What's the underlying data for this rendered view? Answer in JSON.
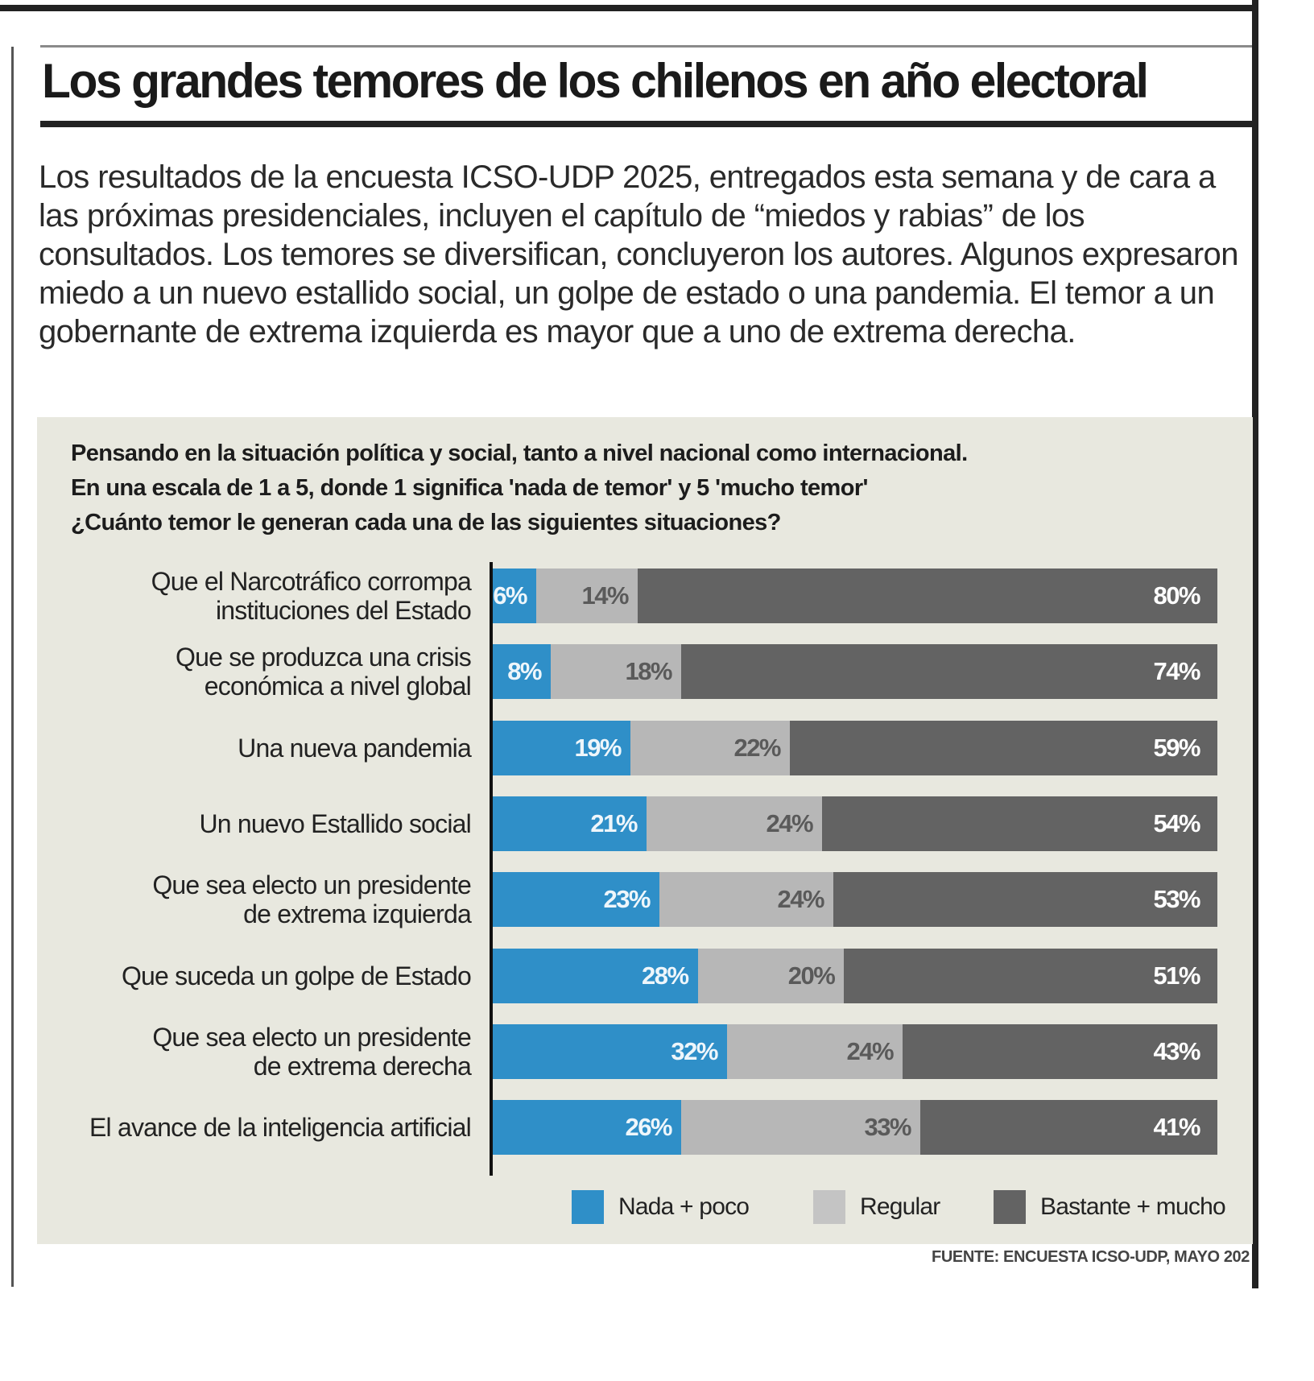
{
  "article": {
    "title": "Los grandes temores de los chilenos en año electoral",
    "intro": "Los resultados de la encuesta ICSO-UDP 2025, entregados esta semana y de cara a las próximas presidenciales, incluyen el capítulo de “miedos y rabias” de los consultados. Los temores se diversifican, concluyeron los autores. Algunos expresaron miedo a un nuevo estallido social, un golpe de estado o una pandemia. El temor a un gobernante de extrema izquierda es mayor que a uno de extrema derecha."
  },
  "chart_data": {
    "type": "bar",
    "orientation": "horizontal",
    "stacked": true,
    "title_lines": [
      "Pensando en la situación política y social, tanto a nivel nacional como internacional.",
      "En una escala de 1 a 5, donde 1 significa 'nada de temor' y 5 'mucho temor'",
      "¿Cuánto temor le generan cada una de las siguientes situaciones?"
    ],
    "categories": [
      [
        "Que el Narcotráfico corrompa",
        "instituciones del Estado"
      ],
      [
        "Que se produzca una crisis",
        "económica a nivel global"
      ],
      [
        "Una nueva pandemia"
      ],
      [
        "Un nuevo Estallido social"
      ],
      [
        "Que sea electo un presidente",
        "de extrema izquierda"
      ],
      [
        "Que suceda un golpe de Estado"
      ],
      [
        "Que sea electo un presidente",
        "de extrema derecha"
      ],
      [
        "El avance de la inteligencia artificial"
      ]
    ],
    "series": [
      {
        "name": "Nada + poco",
        "color": "#2f8fc8",
        "values": [
          6,
          8,
          19,
          21,
          23,
          28,
          32,
          26
        ]
      },
      {
        "name": "Regular",
        "color": "#b7b7b7",
        "values": [
          14,
          18,
          22,
          24,
          24,
          20,
          24,
          33
        ]
      },
      {
        "name": "Bastante + mucho",
        "color": "#636363",
        "values": [
          80,
          74,
          59,
          54,
          53,
          51,
          43,
          41
        ]
      }
    ],
    "value_suffix": "%",
    "xlim": [
      0,
      100
    ],
    "grid": false,
    "legend_position": "bottom-right",
    "source": "FUENTE: ENCUESTA ICSO-UDP, MAYO 202"
  }
}
